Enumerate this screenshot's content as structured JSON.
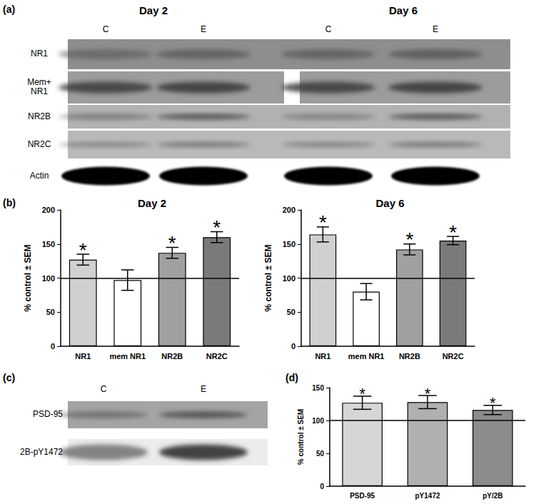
{
  "panel_labels": [
    "(a)",
    "(b)",
    "(c)",
    "(d)"
  ],
  "blots": [
    {
      "groups": [
        {
          "title": "Day 2",
          "lanes": [
            "C",
            "E"
          ]
        },
        {
          "title": "Day 6",
          "lanes": [
            "C",
            "E"
          ]
        }
      ],
      "rows": [
        "NR1",
        "Mem+\nNR1",
        "NR2B",
        "NR2C",
        "Actin"
      ]
    },
    {
      "lanes": [
        "C",
        "E"
      ],
      "rows": [
        "PSD-95",
        "2B-pY1472"
      ]
    }
  ],
  "chart_data": [
    {
      "type": "bar",
      "title": "Day 2",
      "ylabel": "% control ± SEM",
      "categories": [
        "NR1",
        "mem NR1",
        "NR2B",
        "NR2C"
      ],
      "values": [
        127,
        97,
        137,
        160
      ],
      "errors": [
        8,
        15,
        8,
        8
      ],
      "significance": [
        "*",
        null,
        "*",
        "*"
      ],
      "colors": [
        "#d0d0d0",
        "#ffffff",
        "#a0a0a0",
        "#7a7a7a"
      ],
      "ylim": [
        0,
        200
      ],
      "yticks": [
        0,
        50,
        100,
        150,
        200
      ],
      "hline": 100,
      "grid": false
    },
    {
      "type": "bar",
      "title": "Day 6",
      "ylabel": "% control ± SEM",
      "categories": [
        "NR1",
        "mem NR1",
        "NR2B",
        "NR2C"
      ],
      "values": [
        164,
        80,
        142,
        155
      ],
      "errors": [
        11,
        12,
        8,
        6
      ],
      "significance": [
        "*",
        null,
        "*",
        "*"
      ],
      "colors": [
        "#d0d0d0",
        "#ffffff",
        "#a0a0a0",
        "#7a7a7a"
      ],
      "ylim": [
        0,
        200
      ],
      "yticks": [
        0,
        50,
        100,
        150,
        200
      ],
      "hline": 100,
      "grid": false
    },
    {
      "type": "bar",
      "ylabel": "% control ± SEM",
      "categories": [
        "PSD-95",
        "pY1472",
        "pY/2B"
      ],
      "values": [
        127,
        128,
        116
      ],
      "errors": [
        10,
        10,
        7
      ],
      "significance": [
        "*",
        "*",
        "*"
      ],
      "colors": [
        "#d6d6d6",
        "#b0b0b0",
        "#8c8c8c"
      ],
      "ylim": [
        0,
        150
      ],
      "yticks": [
        0,
        50,
        100,
        150
      ],
      "hline": 100,
      "grid": false
    }
  ]
}
